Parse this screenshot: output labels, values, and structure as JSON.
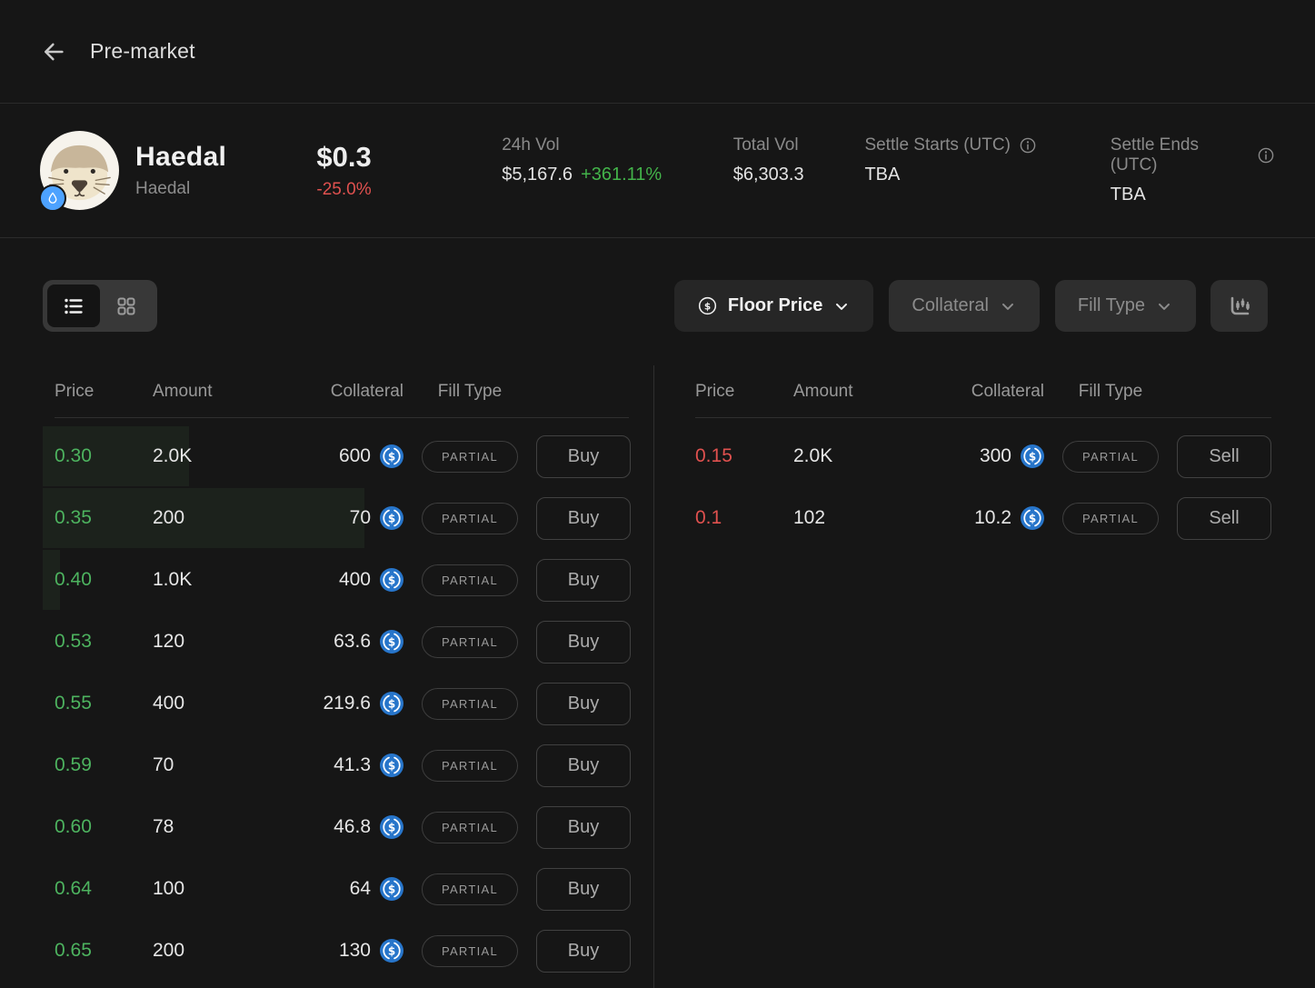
{
  "header": {
    "title": "Pre-market"
  },
  "token": {
    "name": "Haedal",
    "subtitle": "Haedal",
    "price": "$0.3",
    "change": "-25.0%",
    "stats": [
      {
        "label": "24h Vol",
        "value": "$5,167.6",
        "change": "+361.11%"
      },
      {
        "label": "Total Vol",
        "value": "$6,303.3"
      },
      {
        "label": "Settle Starts (UTC)",
        "value": "TBA"
      },
      {
        "label": "Settle Ends (UTC)",
        "value": "TBA"
      }
    ]
  },
  "toolbar": {
    "floor_price_label": "Floor Price",
    "collateral_label": "Collateral",
    "fill_type_label": "Fill Type"
  },
  "orderbook": {
    "columns": [
      "Price",
      "Amount",
      "Collateral",
      "Fill Type"
    ],
    "collateral_currency": "USDC",
    "buy": {
      "action_label": "Buy",
      "rows": [
        {
          "price": "0.30",
          "amount": "2.0K",
          "collateral": "600",
          "fill_type": "PARTIAL",
          "depth_pct": 25.5
        },
        {
          "price": "0.35",
          "amount": "200",
          "collateral": "70",
          "fill_type": "PARTIAL",
          "depth_pct": 56
        },
        {
          "price": "0.40",
          "amount": "1.0K",
          "collateral": "400",
          "fill_type": "PARTIAL",
          "depth_pct": 3
        },
        {
          "price": "0.53",
          "amount": "120",
          "collateral": "63.6",
          "fill_type": "PARTIAL",
          "depth_pct": 0
        },
        {
          "price": "0.55",
          "amount": "400",
          "collateral": "219.6",
          "fill_type": "PARTIAL",
          "depth_pct": 0
        },
        {
          "price": "0.59",
          "amount": "70",
          "collateral": "41.3",
          "fill_type": "PARTIAL",
          "depth_pct": 0
        },
        {
          "price": "0.60",
          "amount": "78",
          "collateral": "46.8",
          "fill_type": "PARTIAL",
          "depth_pct": 0
        },
        {
          "price": "0.64",
          "amount": "100",
          "collateral": "64",
          "fill_type": "PARTIAL",
          "depth_pct": 0
        },
        {
          "price": "0.65",
          "amount": "200",
          "collateral": "130",
          "fill_type": "PARTIAL",
          "depth_pct": 0
        }
      ]
    },
    "sell": {
      "action_label": "Sell",
      "rows": [
        {
          "price": "0.15",
          "amount": "2.0K",
          "collateral": "300",
          "fill_type": "PARTIAL",
          "depth_pct": 0
        },
        {
          "price": "0.1",
          "amount": "102",
          "collateral": "10.2",
          "fill_type": "PARTIAL",
          "depth_pct": 0
        }
      ]
    }
  },
  "icons": {
    "back": "arrow-left-icon",
    "chain_badge": "sui-droplet-icon",
    "info": "info-circle-icon",
    "list_view": "list-icon",
    "grid_view": "grid-icon",
    "floor_price": "dollar-circle-icon",
    "dropdown": "chevron-down-icon",
    "chart": "candlestick-chart-icon",
    "collateral_coin": "usdc-icon"
  },
  "colors": {
    "background": "#161616",
    "buy_green": "#4db35f",
    "sell_red": "#e0514f",
    "positive_green": "#43b34a",
    "usdc_blue": "#2775ca",
    "sui_blue": "#4da2ff"
  }
}
